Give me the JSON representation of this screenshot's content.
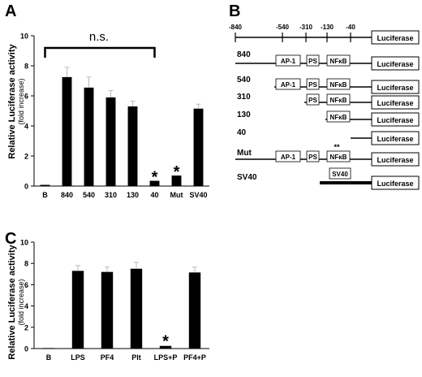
{
  "panels": [
    "A",
    "B",
    "C"
  ],
  "chart_data": [
    {
      "type": "bar",
      "ylabel": "Relative Luciferase activity",
      "ylabel_sub": "(fold increase)",
      "categories": [
        "B",
        "840",
        "540",
        "310",
        "130",
        "40",
        "Mut",
        "SV40"
      ],
      "values": [
        0.08,
        7.25,
        6.55,
        5.9,
        5.3,
        0.35,
        0.7,
        5.15
      ],
      "errors": [
        0,
        0.65,
        0.7,
        0.45,
        0.35,
        0,
        0,
        0.3
      ],
      "ylim": [
        0,
        10
      ],
      "yticks": [
        "0",
        "2",
        "4",
        "6",
        "8",
        "10"
      ],
      "bracket_label": "n.s.",
      "asterisks": [
        "*",
        "*"
      ]
    },
    {
      "type": "bar",
      "ylabel": "Relative Luciferase activity",
      "ylabel_sub": "(fold increase)",
      "categories": [
        "B",
        "LPS",
        "PF4",
        "Plt",
        "LPS+P",
        "PF4+P"
      ],
      "values": [
        0.05,
        7.3,
        7.2,
        7.5,
        0.25,
        7.15
      ],
      "errors": [
        0,
        0.5,
        0.45,
        0.6,
        0,
        0.5
      ],
      "ylim": [
        0,
        10
      ],
      "yticks": [
        "0",
        "2",
        "4",
        "6",
        "8",
        "10"
      ],
      "asterisks": [
        "*"
      ]
    }
  ],
  "constructs": {
    "scale_labels": [
      "-840",
      "-540",
      "-310",
      "-130",
      "-40"
    ],
    "reporter": "Luciferase",
    "elements": {
      "ap1": "AP-1",
      "ps": "PS",
      "nfkb": "NFκB",
      "sv40": "SV40"
    },
    "mut_mark": "**",
    "rows": [
      "840",
      "540",
      "310",
      "130",
      "40",
      "Mut",
      "SV40"
    ]
  }
}
